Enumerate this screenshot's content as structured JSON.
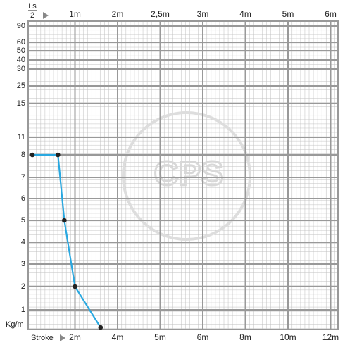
{
  "chart_data": {
    "type": "line",
    "x_label": "Stroke",
    "x2_label": {
      "numerator": "Ls",
      "denominator": "2"
    },
    "y_label": "Kg/m",
    "watermark": "CPS",
    "x": [
      0,
      1.2,
      1.5,
      2,
      3.2
    ],
    "series": [
      {
        "color": "#29a8e0",
        "marker_color": "#222222",
        "values": [
          8,
          8,
          5,
          2,
          0
        ]
      }
    ],
    "xlim": [
      0,
      12
    ],
    "xticks": [
      {
        "value": 2,
        "label": "2m"
      },
      {
        "value": 4,
        "label": "4m"
      },
      {
        "value": 5,
        "label": "5m"
      },
      {
        "value": 6,
        "label": "6m"
      },
      {
        "value": 8,
        "label": "8m"
      },
      {
        "value": 10,
        "label": "10m"
      },
      {
        "value": 12,
        "label": "12m"
      }
    ],
    "x2lim": [
      0,
      6
    ],
    "x2ticks": [
      {
        "value": 1,
        "label": "1m"
      },
      {
        "value": 2,
        "label": "2m"
      },
      {
        "value": 2.5,
        "label": "2,5m"
      },
      {
        "value": 3,
        "label": "3m"
      },
      {
        "value": 4,
        "label": "4m"
      },
      {
        "value": 5,
        "label": "5m"
      },
      {
        "value": 6,
        "label": "6m"
      }
    ],
    "ylim": [
      0,
      90
    ],
    "yticks": [
      1,
      2,
      3,
      4,
      5,
      6,
      7,
      8,
      11,
      15,
      25,
      30,
      40,
      50,
      60,
      90
    ],
    "grid": true
  }
}
